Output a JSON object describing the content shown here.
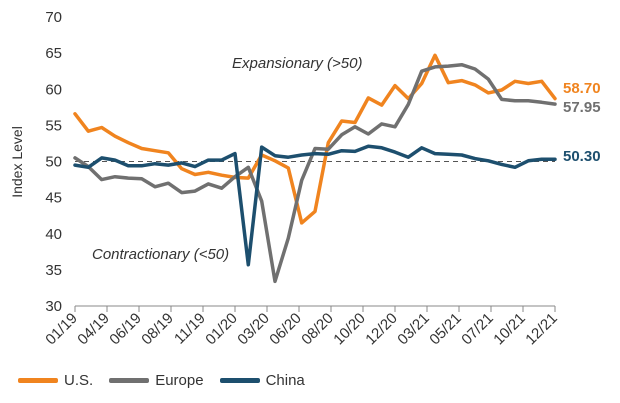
{
  "chart_data": {
    "type": "line",
    "ylabel": "Index Level",
    "ylim": [
      30,
      70
    ],
    "yticks": [
      30,
      35,
      40,
      45,
      50,
      55,
      60,
      65,
      70
    ],
    "x_tick_labels": [
      "01/19",
      "04/19",
      "06/19",
      "08/19",
      "11/19",
      "01/20",
      "03/20",
      "06/20",
      "08/20",
      "10/20",
      "12/20",
      "03/21",
      "05/21",
      "07/21",
      "10/21",
      "12/21"
    ],
    "reference_line": 50,
    "annotations": {
      "upper": "Expansionary (>50)",
      "lower": "Contractionary (<50)"
    },
    "series": [
      {
        "name": "U.S.",
        "color": "#F0841F",
        "end_label": "58.70",
        "values": [
          56.6,
          54.2,
          54.7,
          53.5,
          52.6,
          51.8,
          51.5,
          51.2,
          49.0,
          48.2,
          48.5,
          48.1,
          47.8,
          47.7,
          50.9,
          50.1,
          49.1,
          41.5,
          43.1,
          52.6,
          55.6,
          55.4,
          58.8,
          57.8,
          60.5,
          58.7,
          60.8,
          64.7,
          60.9,
          61.2,
          60.6,
          59.5,
          59.9,
          61.1,
          60.8,
          61.1,
          58.7
        ]
      },
      {
        "name": "Europe",
        "color": "#707070",
        "end_label": "57.95",
        "values": [
          50.5,
          49.3,
          47.5,
          47.9,
          47.7,
          47.6,
          46.5,
          47.0,
          45.7,
          45.9,
          46.9,
          46.3,
          47.9,
          49.2,
          44.5,
          33.4,
          39.4,
          47.4,
          51.8,
          51.7,
          53.7,
          54.8,
          53.8,
          55.2,
          54.8,
          57.9,
          62.5,
          63.1,
          63.2,
          63.4,
          62.8,
          61.4,
          58.6,
          58.4,
          58.4,
          58.2,
          57.95
        ]
      },
      {
        "name": "China",
        "color": "#1D4F6E",
        "end_label": "50.30",
        "values": [
          49.5,
          49.2,
          50.5,
          50.2,
          49.4,
          49.4,
          49.7,
          49.5,
          49.8,
          49.3,
          50.2,
          50.2,
          51.1,
          35.7,
          52.0,
          50.8,
          50.6,
          50.9,
          51.1,
          51.0,
          51.5,
          51.4,
          52.1,
          51.9,
          51.3,
          50.6,
          51.9,
          51.1,
          51.0,
          50.9,
          50.4,
          50.1,
          49.6,
          49.2,
          50.1,
          50.3,
          50.3
        ]
      }
    ]
  }
}
